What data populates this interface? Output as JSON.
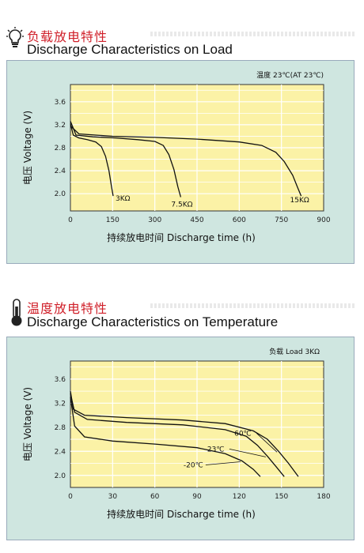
{
  "section1": {
    "title_cn": "负载放电特性",
    "title_en": "Discharge Characteristics on Load",
    "icon": "lightbulb-icon"
  },
  "section2": {
    "title_cn": "温度放电特性",
    "title_en": "Discharge Characteristics on Temperature",
    "icon": "thermometer-icon"
  },
  "chart_data": [
    {
      "type": "line",
      "note": "温度 23℃(AT 23℃)",
      "xlabel_cn": "持续放电时间",
      "xlabel_en": "Discharge time (h)",
      "ylabel_cn": "电压",
      "ylabel_en": "Voltage (V)",
      "xlim": [
        0,
        900
      ],
      "ylim": [
        1.7,
        3.9
      ],
      "xticks": [
        "0",
        "150",
        "300",
        "450",
        "600",
        "750",
        "900"
      ],
      "yticks": [
        "2.0",
        "2.4",
        "2.8",
        "3.2",
        "3.6"
      ],
      "colors": {
        "plot_bg": "#fbf2a6",
        "panel_bg": "#cfe6e0",
        "line": "#111111"
      },
      "series": [
        {
          "name": "3KΩ",
          "x": [
            0,
            10,
            30,
            60,
            90,
            110,
            125,
            137,
            145,
            152
          ],
          "y": [
            3.22,
            3.02,
            2.97,
            2.94,
            2.9,
            2.82,
            2.65,
            2.4,
            2.15,
            1.96
          ]
        },
        {
          "name": "7.5KΩ",
          "x": [
            0,
            20,
            80,
            160,
            240,
            300,
            330,
            350,
            368,
            382,
            392
          ],
          "y": [
            3.26,
            3.02,
            2.99,
            2.97,
            2.94,
            2.91,
            2.84,
            2.68,
            2.42,
            2.12,
            1.94
          ]
        },
        {
          "name": "15KΩ",
          "x": [
            0,
            30,
            150,
            300,
            450,
            600,
            680,
            730,
            760,
            790,
            808,
            820
          ],
          "y": [
            3.18,
            3.04,
            3.0,
            2.98,
            2.95,
            2.9,
            2.84,
            2.72,
            2.56,
            2.32,
            2.1,
            1.96
          ]
        }
      ]
    },
    {
      "type": "line",
      "note": "负载  Load 3KΩ",
      "xlabel_cn": "持续放电时间",
      "xlabel_en": "Discharge time (h)",
      "ylabel_cn": "电压",
      "ylabel_en": "Voltage (V)",
      "xlim": [
        0,
        180
      ],
      "ylim": [
        1.8,
        3.9
      ],
      "xticks": [
        "0",
        "30",
        "60",
        "90",
        "120",
        "150",
        "180"
      ],
      "yticks": [
        "2.0",
        "2.4",
        "2.8",
        "3.2",
        "3.6"
      ],
      "colors": {
        "plot_bg": "#fbf2a6",
        "panel_bg": "#cfe6e0",
        "line": "#111111"
      },
      "series": [
        {
          "name": "60℃",
          "x": [
            0,
            2,
            10,
            40,
            80,
            110,
            130,
            140,
            148,
            155,
            162
          ],
          "y": [
            3.4,
            3.1,
            3.0,
            2.96,
            2.92,
            2.86,
            2.74,
            2.6,
            2.4,
            2.2,
            1.98
          ]
        },
        {
          "name": "23℃",
          "x": [
            0,
            3,
            12,
            40,
            80,
            110,
            125,
            133,
            140,
            146,
            152
          ],
          "y": [
            3.36,
            3.05,
            2.93,
            2.88,
            2.84,
            2.76,
            2.65,
            2.5,
            2.32,
            2.15,
            1.98
          ]
        },
        {
          "name": "-20℃",
          "x": [
            0,
            3,
            10,
            30,
            60,
            90,
            110,
            122,
            130,
            135
          ],
          "y": [
            3.3,
            2.82,
            2.64,
            2.57,
            2.52,
            2.46,
            2.36,
            2.24,
            2.1,
            1.98
          ]
        }
      ],
      "label_positions_note": ""
    }
  ]
}
